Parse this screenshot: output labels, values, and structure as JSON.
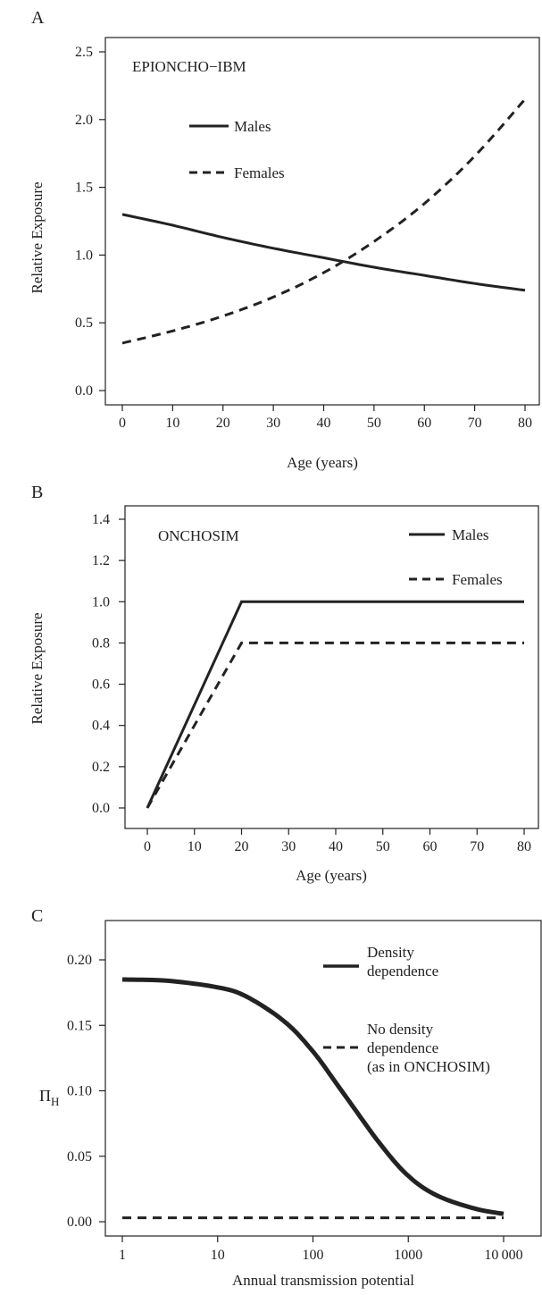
{
  "chart_data": [
    {
      "panel_label": "A",
      "type": "line",
      "title": "EPIONCHO−IBM",
      "xlabel": "Age (years)",
      "ylabel": "Relative Exposure",
      "xlim": [
        0,
        80
      ],
      "ylim": [
        0,
        2.5
      ],
      "xticks": [
        0,
        10,
        20,
        30,
        40,
        50,
        60,
        70,
        80
      ],
      "xtick_labels": [
        "0",
        "10",
        "20",
        "30",
        "40",
        "50",
        "60",
        "70",
        "80"
      ],
      "yticks": [
        0,
        0.5,
        1,
        1.5,
        2,
        2.5
      ],
      "ytick_labels": [
        "0.0",
        "0.5",
        "1.0",
        "1.5",
        "2.0",
        "2.5"
      ],
      "legend_position": "upper-left",
      "series": [
        {
          "name": "Males",
          "style": "solid",
          "x": [
            0,
            10,
            20,
            30,
            40,
            50,
            60,
            70,
            80
          ],
          "y": [
            1.3,
            1.22,
            1.13,
            1.05,
            0.98,
            0.91,
            0.85,
            0.79,
            0.74
          ]
        },
        {
          "name": "Females",
          "style": "dashed",
          "x": [
            0,
            10,
            20,
            30,
            40,
            50,
            60,
            70,
            80
          ],
          "y": [
            0.35,
            0.44,
            0.55,
            0.69,
            0.87,
            1.1,
            1.38,
            1.73,
            2.15
          ]
        }
      ]
    },
    {
      "panel_label": "B",
      "type": "line",
      "title": "ONCHOSIM",
      "xlabel": "Age (years)",
      "ylabel": "Relative Exposure",
      "xlim": [
        0,
        80
      ],
      "ylim": [
        0,
        1.4
      ],
      "xticks": [
        0,
        10,
        20,
        30,
        40,
        50,
        60,
        70,
        80
      ],
      "xtick_labels": [
        "0",
        "10",
        "20",
        "30",
        "40",
        "50",
        "60",
        "70",
        "80"
      ],
      "yticks": [
        0,
        0.2,
        0.4,
        0.6,
        0.8,
        1,
        1.2,
        1.4
      ],
      "ytick_labels": [
        "0.0",
        "0.2",
        "0.4",
        "0.6",
        "0.8",
        "1.0",
        "1.2",
        "1.4"
      ],
      "legend_position": "upper-right",
      "series": [
        {
          "name": "Males",
          "style": "solid",
          "x": [
            0,
            20,
            80
          ],
          "y": [
            0,
            1.0,
            1.0
          ]
        },
        {
          "name": "Females",
          "style": "dashed",
          "x": [
            0,
            20,
            80
          ],
          "y": [
            0,
            0.8,
            0.8
          ]
        }
      ]
    },
    {
      "panel_label": "C",
      "type": "line",
      "xlabel": "Annual transmission potential",
      "ylabel": "ΠH",
      "ylabel_main": "Π",
      "ylabel_sub": "H",
      "x_scale": "log",
      "xlim": [
        1,
        10000
      ],
      "ylim": [
        0,
        0.2
      ],
      "xticks": [
        1,
        10,
        100,
        1000,
        10000
      ],
      "xtick_labels": [
        "1",
        "10",
        "100",
        "1000",
        "10 000"
      ],
      "yticks": [
        0,
        0.05,
        0.1,
        0.15,
        0.2
      ],
      "ytick_labels": [
        "0.00",
        "0.05",
        "0.10",
        "0.15",
        "0.20"
      ],
      "legend_position": "upper-right",
      "legend": [
        {
          "style": "solid",
          "lines": [
            "Density",
            "dependence"
          ]
        },
        {
          "style": "dashed",
          "lines": [
            "No density",
            "dependence",
            "(as in ONCHOSIM)"
          ]
        }
      ],
      "series": [
        {
          "name": "Density dependence",
          "style": "solid",
          "x": [
            1,
            3,
            10,
            20,
            50,
            100,
            200,
            500,
            1000,
            2000,
            5000,
            10000
          ],
          "y": [
            0.185,
            0.184,
            0.179,
            0.172,
            0.153,
            0.13,
            0.1,
            0.06,
            0.035,
            0.02,
            0.01,
            0.006
          ]
        },
        {
          "name": "No density dependence (as in ONCHOSIM)",
          "style": "dashed",
          "x": [
            1,
            10000
          ],
          "y": [
            0.003,
            0.003
          ]
        }
      ]
    }
  ]
}
